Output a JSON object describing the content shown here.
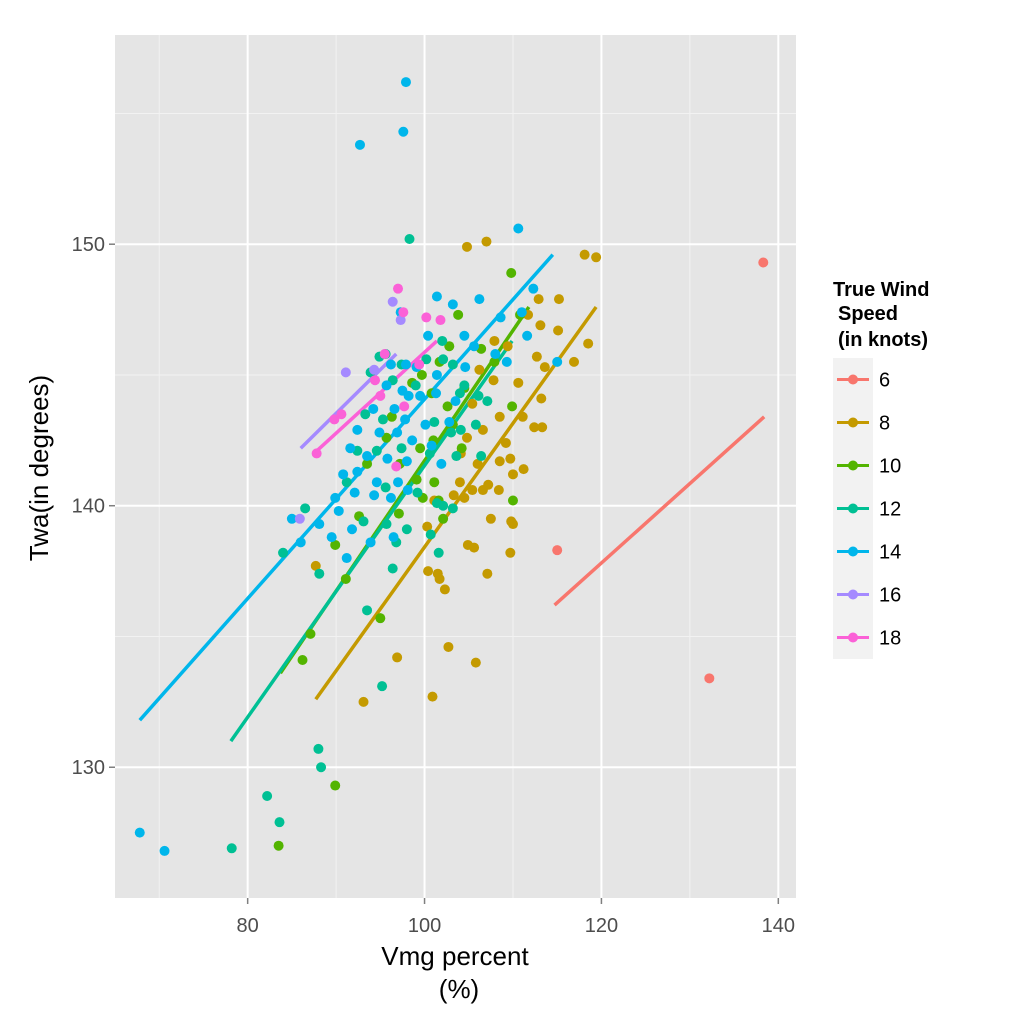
{
  "chart_data": {
    "type": "scatter",
    "title": "",
    "xlabel": [
      "Vmg percent",
      "(%)"
    ],
    "ylabel": "Twa(in degrees)",
    "xlim": [
      65,
      142
    ],
    "ylim": [
      125,
      158
    ],
    "x_ticks": [
      80,
      100,
      120,
      140
    ],
    "y_ticks": [
      130,
      140,
      150
    ],
    "grid": true,
    "legend": {
      "title": [
        "True Wind",
        "Speed",
        "(in knots)"
      ],
      "placement": "right"
    },
    "series": [
      {
        "name": "6",
        "color": "#F8766D",
        "points": [
          [
            138.3,
            149.3
          ],
          [
            115.0,
            138.3
          ],
          [
            132.2,
            133.4
          ]
        ],
        "trend": [
          [
            114.7,
            136.2
          ],
          [
            138.4,
            143.4
          ]
        ]
      },
      {
        "name": "8",
        "color": "#C49A00",
        "points": [
          [
            104.8,
            149.9
          ],
          [
            107.0,
            150.1
          ],
          [
            118.1,
            149.6
          ],
          [
            119.4,
            149.5
          ],
          [
            112.9,
            147.9
          ],
          [
            115.2,
            147.9
          ],
          [
            111.7,
            147.3
          ],
          [
            113.1,
            146.9
          ],
          [
            115.1,
            146.7
          ],
          [
            107.9,
            146.3
          ],
          [
            109.4,
            146.1
          ],
          [
            112.7,
            145.7
          ],
          [
            113.6,
            145.3
          ],
          [
            116.9,
            145.5
          ],
          [
            118.5,
            146.2
          ],
          [
            106.2,
            145.2
          ],
          [
            107.8,
            144.8
          ],
          [
            110.6,
            144.7
          ],
          [
            113.2,
            144.1
          ],
          [
            105.4,
            143.9
          ],
          [
            108.5,
            143.4
          ],
          [
            111.1,
            143.4
          ],
          [
            112.4,
            143.0
          ],
          [
            113.3,
            143.0
          ],
          [
            104.8,
            142.6
          ],
          [
            106.6,
            142.9
          ],
          [
            109.2,
            142.4
          ],
          [
            104.1,
            142.0
          ],
          [
            106.0,
            141.6
          ],
          [
            108.5,
            141.7
          ],
          [
            109.7,
            141.8
          ],
          [
            110.0,
            141.2
          ],
          [
            111.2,
            141.4
          ],
          [
            104.0,
            140.9
          ],
          [
            105.4,
            140.6
          ],
          [
            106.6,
            140.6
          ],
          [
            107.2,
            140.8
          ],
          [
            108.4,
            140.6
          ],
          [
            101.1,
            140.2
          ],
          [
            103.3,
            140.4
          ],
          [
            104.5,
            140.3
          ],
          [
            107.5,
            139.5
          ],
          [
            109.8,
            139.4
          ],
          [
            110.0,
            139.3
          ],
          [
            100.3,
            139.2
          ],
          [
            104.9,
            138.5
          ],
          [
            105.6,
            138.4
          ],
          [
            109.7,
            138.2
          ],
          [
            87.7,
            137.7
          ],
          [
            100.4,
            137.5
          ],
          [
            101.5,
            137.4
          ],
          [
            102.3,
            136.8
          ],
          [
            101.7,
            137.2
          ],
          [
            107.1,
            137.4
          ],
          [
            102.7,
            134.6
          ],
          [
            105.8,
            134.0
          ],
          [
            96.9,
            134.2
          ],
          [
            100.9,
            132.7
          ],
          [
            93.1,
            132.5
          ]
        ],
        "trend": [
          [
            87.7,
            132.6
          ],
          [
            119.4,
            147.6
          ]
        ]
      },
      {
        "name": "10",
        "color": "#53B400",
        "points": [
          [
            109.8,
            148.9
          ],
          [
            110.8,
            147.3
          ],
          [
            103.8,
            147.3
          ],
          [
            106.4,
            146.0
          ],
          [
            107.9,
            145.5
          ],
          [
            102.8,
            146.1
          ],
          [
            101.7,
            145.5
          ],
          [
            99.7,
            145.0
          ],
          [
            98.6,
            144.7
          ],
          [
            104.5,
            144.5
          ],
          [
            100.8,
            144.3
          ],
          [
            102.6,
            143.8
          ],
          [
            96.3,
            143.4
          ],
          [
            103.2,
            143.1
          ],
          [
            95.7,
            142.6
          ],
          [
            101.0,
            142.5
          ],
          [
            99.5,
            142.2
          ],
          [
            104.2,
            142.2
          ],
          [
            97.2,
            141.6
          ],
          [
            99.1,
            141.0
          ],
          [
            101.1,
            140.9
          ],
          [
            99.8,
            140.3
          ],
          [
            101.6,
            140.2
          ],
          [
            97.1,
            139.7
          ],
          [
            102.1,
            139.5
          ],
          [
            109.9,
            143.8
          ],
          [
            110.0,
            140.2
          ],
          [
            93.5,
            141.6
          ],
          [
            92.6,
            139.6
          ],
          [
            91.1,
            137.2
          ],
          [
            95.0,
            135.7
          ],
          [
            89.9,
            138.5
          ],
          [
            86.2,
            134.1
          ],
          [
            87.1,
            135.1
          ],
          [
            89.9,
            129.3
          ],
          [
            83.5,
            127.0
          ]
        ],
        "trend": [
          [
            83.7,
            133.6
          ],
          [
            111.8,
            147.6
          ]
        ]
      },
      {
        "name": "12",
        "color": "#00C094",
        "points": [
          [
            98.3,
            150.2
          ],
          [
            95.6,
            145.8
          ],
          [
            97.4,
            145.4
          ],
          [
            100.2,
            145.6
          ],
          [
            102.1,
            145.6
          ],
          [
            103.2,
            145.4
          ],
          [
            93.9,
            145.1
          ],
          [
            96.4,
            144.8
          ],
          [
            99.0,
            144.6
          ],
          [
            104.0,
            144.3
          ],
          [
            106.1,
            144.2
          ],
          [
            93.3,
            143.5
          ],
          [
            95.3,
            143.3
          ],
          [
            101.1,
            143.2
          ],
          [
            103.0,
            142.8
          ],
          [
            104.1,
            142.9
          ],
          [
            107.1,
            144.0
          ],
          [
            92.4,
            142.1
          ],
          [
            94.6,
            142.1
          ],
          [
            97.4,
            142.2
          ],
          [
            100.6,
            142.0
          ],
          [
            103.6,
            141.9
          ],
          [
            106.4,
            141.9
          ],
          [
            91.2,
            140.9
          ],
          [
            95.6,
            140.7
          ],
          [
            99.2,
            140.5
          ],
          [
            101.4,
            140.1
          ],
          [
            102.1,
            140.0
          ],
          [
            103.2,
            139.9
          ],
          [
            93.1,
            139.4
          ],
          [
            95.7,
            139.3
          ],
          [
            98.0,
            139.1
          ],
          [
            100.7,
            138.9
          ],
          [
            96.8,
            138.6
          ],
          [
            101.6,
            138.2
          ],
          [
            96.4,
            137.6
          ],
          [
            93.5,
            136.0
          ],
          [
            95.2,
            133.1
          ],
          [
            84.0,
            138.2
          ],
          [
            88.1,
            137.4
          ],
          [
            88.0,
            130.7
          ],
          [
            88.3,
            130.0
          ],
          [
            82.2,
            128.9
          ],
          [
            83.6,
            127.9
          ],
          [
            78.2,
            126.9
          ],
          [
            86.5,
            139.9
          ],
          [
            94.9,
            145.7
          ],
          [
            102.0,
            146.3
          ],
          [
            104.5,
            144.6
          ],
          [
            105.8,
            143.1
          ]
        ],
        "trend": [
          [
            78.1,
            131.0
          ],
          [
            109.9,
            146.3
          ]
        ]
      },
      {
        "name": "14",
        "color": "#00B6EB",
        "points": [
          [
            97.9,
            156.2
          ],
          [
            97.6,
            154.3
          ],
          [
            92.7,
            153.8
          ],
          [
            110.6,
            150.6
          ],
          [
            106.2,
            147.9
          ],
          [
            103.2,
            147.7
          ],
          [
            111.0,
            147.4
          ],
          [
            100.4,
            146.5
          ],
          [
            104.5,
            146.5
          ],
          [
            105.6,
            146.1
          ],
          [
            108.0,
            145.8
          ],
          [
            109.3,
            145.5
          ],
          [
            111.6,
            146.5
          ],
          [
            96.2,
            145.4
          ],
          [
            97.9,
            145.4
          ],
          [
            99.1,
            145.3
          ],
          [
            101.4,
            145.0
          ],
          [
            104.6,
            145.3
          ],
          [
            95.7,
            144.6
          ],
          [
            97.5,
            144.4
          ],
          [
            98.2,
            144.2
          ],
          [
            99.5,
            144.2
          ],
          [
            101.3,
            144.3
          ],
          [
            103.5,
            144.0
          ],
          [
            94.2,
            143.7
          ],
          [
            96.6,
            143.7
          ],
          [
            97.8,
            143.3
          ],
          [
            100.1,
            143.1
          ],
          [
            102.8,
            143.2
          ],
          [
            92.4,
            142.9
          ],
          [
            94.9,
            142.8
          ],
          [
            96.9,
            142.8
          ],
          [
            98.6,
            142.5
          ],
          [
            100.8,
            142.3
          ],
          [
            91.6,
            142.2
          ],
          [
            93.5,
            141.9
          ],
          [
            95.8,
            141.8
          ],
          [
            98.0,
            141.7
          ],
          [
            101.9,
            141.6
          ],
          [
            90.8,
            141.2
          ],
          [
            92.4,
            141.3
          ],
          [
            94.6,
            140.9
          ],
          [
            97.0,
            140.9
          ],
          [
            98.1,
            140.6
          ],
          [
            89.9,
            140.3
          ],
          [
            92.1,
            140.5
          ],
          [
            94.3,
            140.4
          ],
          [
            96.2,
            140.3
          ],
          [
            90.3,
            139.8
          ],
          [
            91.8,
            139.1
          ],
          [
            88.1,
            139.3
          ],
          [
            89.5,
            138.8
          ],
          [
            91.2,
            138.0
          ],
          [
            96.5,
            138.8
          ],
          [
            93.9,
            138.6
          ],
          [
            85.0,
            139.5
          ],
          [
            86.0,
            138.6
          ],
          [
            67.8,
            127.5
          ],
          [
            70.6,
            126.8
          ],
          [
            101.4,
            148.0
          ],
          [
            108.6,
            147.2
          ],
          [
            115.0,
            145.5
          ],
          [
            97.3,
            147.4
          ],
          [
            112.3,
            148.3
          ]
        ],
        "trend": [
          [
            67.8,
            131.8
          ],
          [
            114.5,
            149.6
          ]
        ]
      },
      {
        "name": "16",
        "color": "#A58AFF",
        "points": [
          [
            96.4,
            147.8
          ],
          [
            97.3,
            147.1
          ],
          [
            94.3,
            145.2
          ],
          [
            91.1,
            145.1
          ],
          [
            85.9,
            139.5
          ]
        ],
        "trend": [
          [
            86.0,
            142.2
          ],
          [
            96.8,
            145.8
          ]
        ]
      },
      {
        "name": "18",
        "color": "#FB61D7",
        "points": [
          [
            97.0,
            148.3
          ],
          [
            97.6,
            147.4
          ],
          [
            100.2,
            147.2
          ],
          [
            101.8,
            147.1
          ],
          [
            95.5,
            145.8
          ],
          [
            99.4,
            145.4
          ],
          [
            94.4,
            144.8
          ],
          [
            95.0,
            144.2
          ],
          [
            97.7,
            143.8
          ],
          [
            89.8,
            143.3
          ],
          [
            90.6,
            143.5
          ],
          [
            87.8,
            142.0
          ],
          [
            96.8,
            141.5
          ]
        ],
        "trend": [
          [
            87.5,
            142.0
          ],
          [
            101.4,
            146.3
          ]
        ]
      }
    ]
  }
}
